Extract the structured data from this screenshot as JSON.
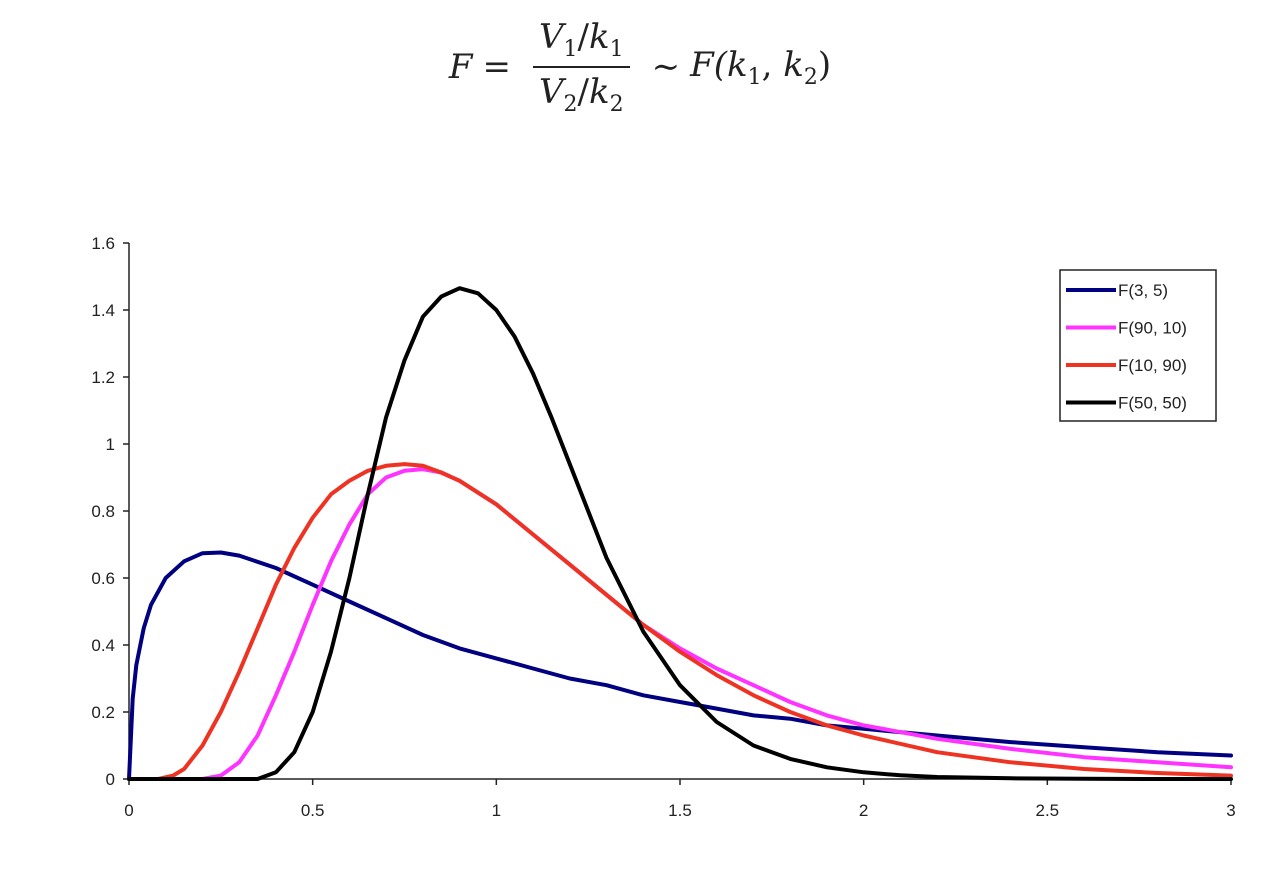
{
  "formula": {
    "lhs": "F",
    "eq": "=",
    "num_v": "V",
    "num_vsub": "1",
    "num_k": "k",
    "num_ksub": "1",
    "den_v": "V",
    "den_vsub": "2",
    "den_k": "k",
    "den_ksub": "2",
    "sim": "∼",
    "rhs_F": "F(",
    "rhs_k1": "k",
    "rhs_k1sub": "1",
    "rhs_comma": ", ",
    "rhs_k2": "k",
    "rhs_k2sub": "2",
    "rhs_close": ")"
  },
  "chart_data": {
    "type": "line",
    "title": "",
    "xlabel": "",
    "ylabel": "",
    "xlim": [
      0,
      3
    ],
    "ylim": [
      0,
      1.6
    ],
    "x_ticks": [
      "0",
      "0.5",
      "1",
      "1.5",
      "2",
      "2.5",
      "3"
    ],
    "y_ticks": [
      "0",
      "0.2",
      "0.4",
      "0.6",
      "0.8",
      "1",
      "1.2",
      "1.4",
      "1.6"
    ],
    "grid": false,
    "legend_position": "top-right",
    "series": [
      {
        "name": "F(3, 5)",
        "color": "#000080",
        "x": [
          0,
          0.01,
          0.02,
          0.04,
          0.06,
          0.1,
          0.15,
          0.2,
          0.25,
          0.3,
          0.4,
          0.5,
          0.6,
          0.7,
          0.8,
          0.9,
          1.0,
          1.1,
          1.2,
          1.3,
          1.4,
          1.5,
          1.6,
          1.7,
          1.8,
          1.9,
          2.0,
          2.2,
          2.4,
          2.6,
          2.8,
          3.0
        ],
        "y": [
          0,
          0.24,
          0.34,
          0.45,
          0.52,
          0.6,
          0.65,
          0.674,
          0.676,
          0.667,
          0.63,
          0.58,
          0.53,
          0.48,
          0.43,
          0.39,
          0.36,
          0.33,
          0.3,
          0.28,
          0.25,
          0.23,
          0.21,
          0.19,
          0.18,
          0.16,
          0.15,
          0.13,
          0.11,
          0.095,
          0.08,
          0.07
        ]
      },
      {
        "name": "F(90, 10)",
        "color": "#ff33ff",
        "x": [
          0,
          0.2,
          0.25,
          0.3,
          0.35,
          0.4,
          0.45,
          0.5,
          0.55,
          0.6,
          0.65,
          0.7,
          0.75,
          0.8,
          0.85,
          0.9,
          1.0,
          1.1,
          1.2,
          1.3,
          1.4,
          1.5,
          1.6,
          1.7,
          1.8,
          1.9,
          2.0,
          2.2,
          2.4,
          2.6,
          2.8,
          3.0
        ],
        "y": [
          0,
          0,
          0.01,
          0.05,
          0.13,
          0.25,
          0.38,
          0.52,
          0.65,
          0.76,
          0.85,
          0.9,
          0.92,
          0.925,
          0.915,
          0.89,
          0.82,
          0.73,
          0.64,
          0.55,
          0.46,
          0.39,
          0.33,
          0.28,
          0.23,
          0.19,
          0.16,
          0.12,
          0.09,
          0.065,
          0.05,
          0.035
        ]
      },
      {
        "name": "F(10, 90)",
        "color": "#ee3322",
        "x": [
          0,
          0.08,
          0.12,
          0.15,
          0.2,
          0.25,
          0.3,
          0.35,
          0.4,
          0.45,
          0.5,
          0.55,
          0.6,
          0.65,
          0.7,
          0.75,
          0.8,
          0.85,
          0.9,
          1.0,
          1.1,
          1.2,
          1.3,
          1.4,
          1.5,
          1.6,
          1.7,
          1.8,
          1.9,
          2.0,
          2.2,
          2.4,
          2.6,
          2.8,
          3.0
        ],
        "y": [
          0,
          0,
          0.01,
          0.03,
          0.1,
          0.2,
          0.32,
          0.45,
          0.58,
          0.69,
          0.78,
          0.85,
          0.89,
          0.92,
          0.935,
          0.94,
          0.935,
          0.915,
          0.89,
          0.82,
          0.73,
          0.64,
          0.55,
          0.46,
          0.38,
          0.31,
          0.25,
          0.2,
          0.16,
          0.13,
          0.08,
          0.05,
          0.03,
          0.018,
          0.01
        ]
      },
      {
        "name": "F(50, 50)",
        "color": "#000000",
        "x": [
          0,
          0.35,
          0.4,
          0.45,
          0.5,
          0.55,
          0.6,
          0.65,
          0.7,
          0.75,
          0.8,
          0.85,
          0.9,
          0.95,
          1.0,
          1.05,
          1.1,
          1.15,
          1.2,
          1.3,
          1.4,
          1.5,
          1.6,
          1.7,
          1.8,
          1.9,
          2.0,
          2.1,
          2.2,
          2.4,
          2.6,
          2.8,
          3.0
        ],
        "y": [
          0,
          0,
          0.02,
          0.08,
          0.2,
          0.38,
          0.6,
          0.85,
          1.08,
          1.25,
          1.38,
          1.44,
          1.465,
          1.45,
          1.4,
          1.32,
          1.21,
          1.08,
          0.94,
          0.66,
          0.44,
          0.28,
          0.17,
          0.1,
          0.06,
          0.035,
          0.02,
          0.011,
          0.006,
          0.002,
          0.001,
          0,
          0
        ]
      }
    ]
  }
}
